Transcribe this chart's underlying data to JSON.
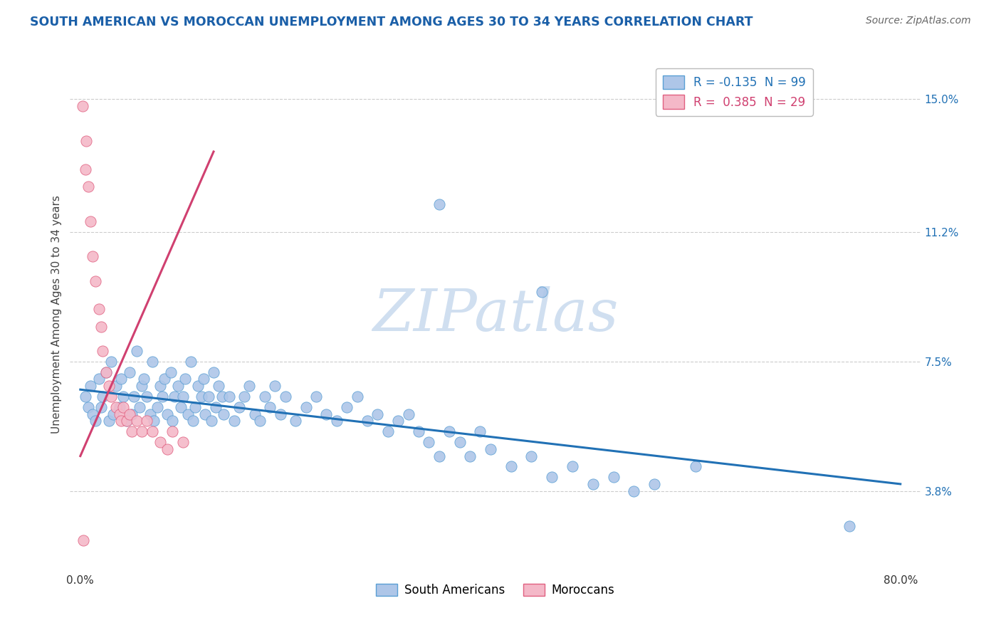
{
  "title": "SOUTH AMERICAN VS MOROCCAN UNEMPLOYMENT AMONG AGES 30 TO 34 YEARS CORRELATION CHART",
  "source": "Source: ZipAtlas.com",
  "ylabel": "Unemployment Among Ages 30 to 34 years",
  "xlim": [
    -0.01,
    0.82
  ],
  "ylim": [
    0.015,
    0.162
  ],
  "ytick_positions": [
    0.038,
    0.075,
    0.112,
    0.15
  ],
  "ytick_labels": [
    "3.8%",
    "7.5%",
    "11.2%",
    "15.0%"
  ],
  "grid_color": "#cccccc",
  "background_color": "#ffffff",
  "blue_color": "#aec6e8",
  "blue_edge": "#5a9fd4",
  "pink_color": "#f4b8c8",
  "pink_edge": "#e06080",
  "trend_blue_color": "#2171b5",
  "trend_pink_color": "#d04070",
  "R_blue": -0.135,
  "N_blue": 99,
  "R_pink": 0.385,
  "N_pink": 29,
  "watermark": "ZIPatlas",
  "watermark_color": "#d0dff0",
  "legend_label_blue": "South Americans",
  "legend_label_pink": "Moroccans",
  "blue_scatter_x": [
    0.005,
    0.008,
    0.01,
    0.012,
    0.015,
    0.018,
    0.02,
    0.022,
    0.025,
    0.028,
    0.03,
    0.032,
    0.035,
    0.038,
    0.04,
    0.042,
    0.045,
    0.048,
    0.05,
    0.052,
    0.055,
    0.058,
    0.06,
    0.062,
    0.065,
    0.068,
    0.07,
    0.072,
    0.075,
    0.078,
    0.08,
    0.082,
    0.085,
    0.088,
    0.09,
    0.092,
    0.095,
    0.098,
    0.1,
    0.102,
    0.105,
    0.108,
    0.11,
    0.112,
    0.115,
    0.118,
    0.12,
    0.122,
    0.125,
    0.128,
    0.13,
    0.132,
    0.135,
    0.138,
    0.14,
    0.145,
    0.15,
    0.155,
    0.16,
    0.165,
    0.17,
    0.175,
    0.18,
    0.185,
    0.19,
    0.195,
    0.2,
    0.21,
    0.22,
    0.23,
    0.24,
    0.25,
    0.26,
    0.27,
    0.28,
    0.29,
    0.3,
    0.31,
    0.32,
    0.33,
    0.34,
    0.35,
    0.36,
    0.37,
    0.38,
    0.39,
    0.4,
    0.42,
    0.44,
    0.46,
    0.48,
    0.5,
    0.52,
    0.54,
    0.56,
    0.45,
    0.35,
    0.6,
    0.75
  ],
  "blue_scatter_y": [
    0.065,
    0.062,
    0.068,
    0.06,
    0.058,
    0.07,
    0.062,
    0.065,
    0.072,
    0.058,
    0.075,
    0.06,
    0.068,
    0.062,
    0.07,
    0.065,
    0.058,
    0.072,
    0.06,
    0.065,
    0.078,
    0.062,
    0.068,
    0.07,
    0.065,
    0.06,
    0.075,
    0.058,
    0.062,
    0.068,
    0.065,
    0.07,
    0.06,
    0.072,
    0.058,
    0.065,
    0.068,
    0.062,
    0.065,
    0.07,
    0.06,
    0.075,
    0.058,
    0.062,
    0.068,
    0.065,
    0.07,
    0.06,
    0.065,
    0.058,
    0.072,
    0.062,
    0.068,
    0.065,
    0.06,
    0.065,
    0.058,
    0.062,
    0.065,
    0.068,
    0.06,
    0.058,
    0.065,
    0.062,
    0.068,
    0.06,
    0.065,
    0.058,
    0.062,
    0.065,
    0.06,
    0.058,
    0.062,
    0.065,
    0.058,
    0.06,
    0.055,
    0.058,
    0.06,
    0.055,
    0.052,
    0.048,
    0.055,
    0.052,
    0.048,
    0.055,
    0.05,
    0.045,
    0.048,
    0.042,
    0.045,
    0.04,
    0.042,
    0.038,
    0.04,
    0.095,
    0.12,
    0.045,
    0.028
  ],
  "pink_scatter_x": [
    0.002,
    0.005,
    0.006,
    0.008,
    0.01,
    0.012,
    0.015,
    0.018,
    0.02,
    0.022,
    0.025,
    0.028,
    0.03,
    0.035,
    0.038,
    0.04,
    0.042,
    0.045,
    0.048,
    0.05,
    0.055,
    0.06,
    0.065,
    0.07,
    0.078,
    0.085,
    0.09,
    0.1,
    0.003
  ],
  "pink_scatter_y": [
    0.148,
    0.13,
    0.138,
    0.125,
    0.115,
    0.105,
    0.098,
    0.09,
    0.085,
    0.078,
    0.072,
    0.068,
    0.065,
    0.062,
    0.06,
    0.058,
    0.062,
    0.058,
    0.06,
    0.055,
    0.058,
    0.055,
    0.058,
    0.055,
    0.052,
    0.05,
    0.055,
    0.052,
    0.024
  ],
  "blue_trend_x": [
    0.0,
    0.8
  ],
  "blue_trend_y": [
    0.067,
    0.04
  ],
  "pink_trend_x": [
    0.0,
    0.13
  ],
  "pink_trend_y": [
    0.048,
    0.135
  ]
}
